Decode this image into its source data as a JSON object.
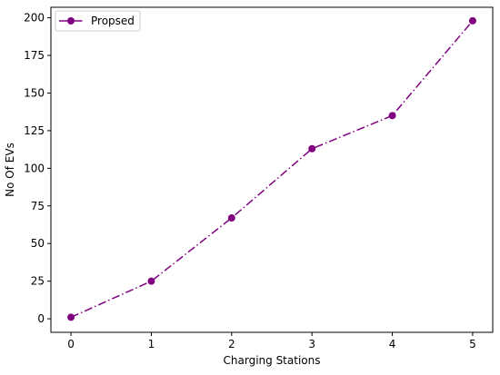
{
  "chart_data": {
    "type": "line",
    "title": "",
    "xlabel": "Charging Stations",
    "ylabel": "No Of EVs",
    "x": [
      0,
      1,
      2,
      3,
      4,
      5
    ],
    "xticks": [
      "0",
      "1",
      "2",
      "3",
      "4",
      "5"
    ],
    "yticks": [
      "0",
      "25",
      "50",
      "75",
      "100",
      "125",
      "150",
      "175",
      "200"
    ],
    "xlim": [
      -0.25,
      5.25
    ],
    "ylim": [
      -9,
      207
    ],
    "grid": false,
    "legend_position": "top-left",
    "series": [
      {
        "name": "Propsed",
        "values": [
          1,
          25,
          67,
          113,
          135,
          198
        ],
        "color": "#800080",
        "line_style": "dash-dot",
        "marker": "circle"
      }
    ]
  }
}
